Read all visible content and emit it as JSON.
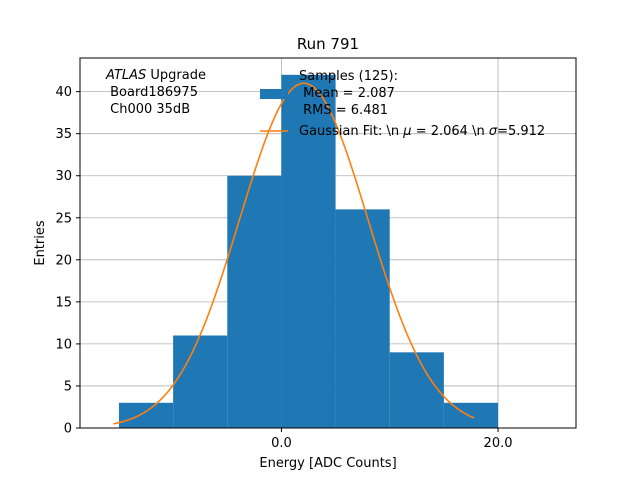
{
  "chart_data": {
    "type": "bar",
    "title": "Run 791",
    "xlabel": "Energy [ADC Counts]",
    "ylabel": "Entries",
    "xlim": [
      -18.6,
      27.2
    ],
    "ylim": [
      0,
      44
    ],
    "grid": true,
    "bins": [
      {
        "x0": -15,
        "x1": -10,
        "count": 3
      },
      {
        "x0": -10,
        "x1": -5,
        "count": 11
      },
      {
        "x0": -5,
        "x1": 0,
        "count": 30
      },
      {
        "x0": 0,
        "x1": 5,
        "count": 42
      },
      {
        "x0": 5,
        "x1": 10,
        "count": 26
      },
      {
        "x0": 10,
        "x1": 15,
        "count": 9
      },
      {
        "x0": 15,
        "x1": 20,
        "count": 3
      }
    ],
    "bar_color": "#1f77b4",
    "fit": {
      "mu": 2.064,
      "sigma": 5.912,
      "amplitude": 41.0,
      "x_from": -15.5,
      "x_to": 17.8,
      "color": "#ff7f0e"
    },
    "xticks": [
      {
        "value": 0,
        "label": "0.0"
      },
      {
        "value": 20,
        "label": "20.0"
      }
    ],
    "yticks": [
      0,
      5,
      10,
      15,
      20,
      25,
      30,
      35,
      40
    ],
    "annotation": {
      "experiment": "ATLAS",
      "experiment_suffix": " Upgrade",
      "board": " Board186975",
      "channel": " Ch000 35dB"
    },
    "legend": {
      "placement": "top-right",
      "hist_entry": [
        "Samples (125):",
        " Mean = 2.087",
        " RMS = 6.481"
      ],
      "fit_entry_prefix": "Gaussian Fit: \\n ",
      "fit_entry_mu": "μ",
      "fit_entry_mid": " = 2.064 \\n ",
      "fit_entry_sigma": "σ",
      "fit_entry_suffix": "=5.912"
    }
  }
}
